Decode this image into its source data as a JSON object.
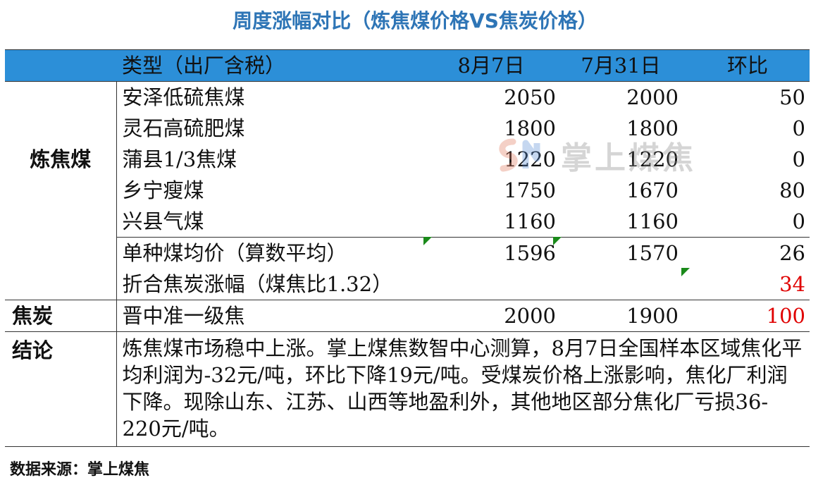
{
  "title": "周度涨幅对比（炼焦煤价格VS焦炭价格）",
  "header": {
    "type_label": "类型（出厂含税）",
    "col1": "8月7日",
    "col2": "7月31日",
    "col3": "环比"
  },
  "coking_coal": {
    "category": "炼焦煤",
    "rows": [
      {
        "name": "安泽低硫焦煤",
        "v1": "2050",
        "v2": "2000",
        "chg": "50"
      },
      {
        "name": "灵石高硫肥煤",
        "v1": "1800",
        "v2": "1800",
        "chg": "0"
      },
      {
        "name": "蒲县1/3焦煤",
        "v1": "1220",
        "v2": "1220",
        "chg": "0"
      },
      {
        "name": "乡宁瘦煤",
        "v1": "1750",
        "v2": "1670",
        "chg": "80"
      },
      {
        "name": "兴县气煤",
        "v1": "1160",
        "v2": "1160",
        "chg": "0"
      }
    ],
    "avg": {
      "name": "单种煤均价（算数平均）",
      "v1": "1596",
      "v2": "1570",
      "chg": "26"
    },
    "converted": {
      "name": "折合焦炭涨幅（煤焦比1.32）",
      "chg": "34"
    }
  },
  "coke": {
    "category": "焦炭",
    "row": {
      "name": "晋中准一级焦",
      "v1": "2000",
      "v2": "1900",
      "chg": "100"
    }
  },
  "conclusion": {
    "category": "结论",
    "text": "炼焦煤市场稳中上涨。掌上煤焦数智中心测算，8月7日全国样本区域焦化平均利润为-32元/吨，环比下降19元/吨。受煤炭价格上涨影响，焦化厂利润下降。现除山东、江苏、山西等地盈利外，其他地区部分焦化厂亏损36-220元/吨。"
  },
  "watermark": {
    "text": "掌上煤焦"
  },
  "source": "数据来源：掌上煤焦",
  "colors": {
    "title": "#2e75b6",
    "header_bg": "#2c8fd8",
    "highlight": "#e00000",
    "marker": "#1a8a1a"
  }
}
